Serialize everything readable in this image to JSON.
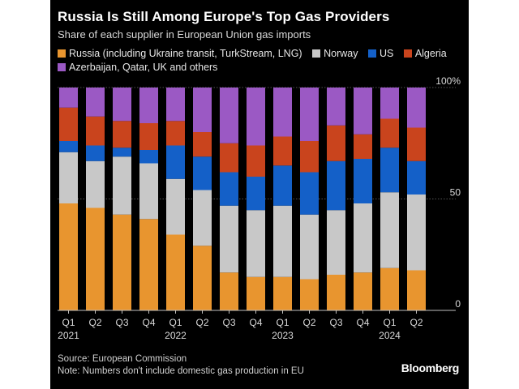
{
  "header": {
    "title": "Russia Is Still Among Europe's Top Gas Providers",
    "subtitle": "Share of each supplier in European Union gas imports"
  },
  "legend": [
    {
      "label": "Russia (including Ukraine transit, TurkStream, LNG)",
      "color": "#e8952f"
    },
    {
      "label": "Norway",
      "color": "#c8c8c8"
    },
    {
      "label": "US",
      "color": "#1460c8"
    },
    {
      "label": "Algeria",
      "color": "#c9441d"
    },
    {
      "label": "Azerbaijan, Qatar, UK and others",
      "color": "#9b59c4"
    }
  ],
  "chart_data": {
    "type": "bar",
    "stacked": true,
    "categories": [
      "Q1 2021",
      "Q2 2021",
      "Q3 2021",
      "Q4 2021",
      "Q1 2022",
      "Q2 2022",
      "Q3 2022",
      "Q4 2022",
      "Q1 2023",
      "Q2 2023",
      "Q3 2023",
      "Q4 2023",
      "Q1 2024",
      "Q2 2024"
    ],
    "tick_labels": [
      {
        "line1": "Q1",
        "line2": "2021"
      },
      {
        "line1": "Q2",
        "line2": ""
      },
      {
        "line1": "Q3",
        "line2": ""
      },
      {
        "line1": "Q4",
        "line2": ""
      },
      {
        "line1": "Q1",
        "line2": "2022"
      },
      {
        "line1": "Q2",
        "line2": ""
      },
      {
        "line1": "Q3",
        "line2": ""
      },
      {
        "line1": "Q4",
        "line2": ""
      },
      {
        "line1": "Q1",
        "line2": "2023"
      },
      {
        "line1": "Q2",
        "line2": ""
      },
      {
        "line1": "Q3",
        "line2": ""
      },
      {
        "line1": "Q4",
        "line2": ""
      },
      {
        "line1": "Q1",
        "line2": "2024"
      },
      {
        "line1": "Q2",
        "line2": ""
      }
    ],
    "series": [
      {
        "name": "Russia (including Ukraine transit, TurkStream, LNG)",
        "color": "#e8952f",
        "values": [
          48,
          46,
          43,
          41,
          34,
          29,
          17,
          15,
          15,
          14,
          16,
          17,
          19,
          18
        ]
      },
      {
        "name": "Norway",
        "color": "#c8c8c8",
        "values": [
          23,
          21,
          26,
          25,
          25,
          25,
          30,
          30,
          32,
          29,
          29,
          31,
          34,
          34
        ]
      },
      {
        "name": "US",
        "color": "#1460c8",
        "values": [
          5,
          7,
          4,
          6,
          15,
          15,
          15,
          15,
          18,
          19,
          22,
          20,
          20,
          15
        ]
      },
      {
        "name": "Algeria",
        "color": "#c9441d",
        "values": [
          15,
          13,
          12,
          12,
          11,
          11,
          13,
          14,
          13,
          14,
          16,
          11,
          13,
          15
        ]
      },
      {
        "name": "Azerbaijan, Qatar, UK and others",
        "color": "#9b59c4",
        "values": [
          9,
          13,
          15,
          16,
          15,
          20,
          25,
          26,
          22,
          24,
          17,
          21,
          14,
          18
        ]
      }
    ],
    "y_ticks": [
      {
        "value": 0,
        "label": "0"
      },
      {
        "value": 50,
        "label": "50"
      },
      {
        "value": 100,
        "label": "100%"
      }
    ],
    "ylim": [
      0,
      100
    ],
    "grid": true,
    "legend_position": "top"
  },
  "footer": {
    "source": "Source: European Commission",
    "note": "Note: Numbers don't include domestic gas production in EU",
    "brand": "Bloomberg"
  }
}
